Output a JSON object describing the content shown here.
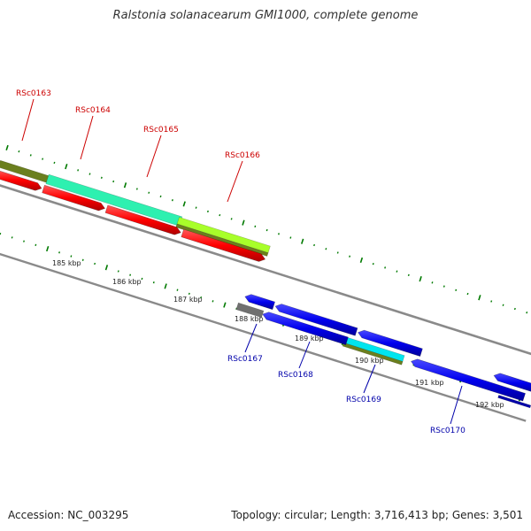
{
  "title": "Ralstonia solanacearum GMI1000, complete genome",
  "footer": {
    "accession_label": "Accession:",
    "accession": "NC_003295",
    "topology_label": "Topology:",
    "topology": "circular",
    "length_label": "Length:",
    "length": "3,716,413 bp",
    "genes_label": "Genes:",
    "genes": "3,501"
  },
  "scale_ticks": [
    "185 kbp",
    "186 kbp",
    "187 kbp",
    "188 kbp",
    "189 kbp",
    "190 kbp",
    "191 kbp",
    "192 kbp"
  ],
  "gene_labels_forward": [
    "RSc0163",
    "RSc0164",
    "RSc0165",
    "RSc0166"
  ],
  "gene_labels_reverse": [
    "RSc0167",
    "RSc0168",
    "RSc0169",
    "RSc0170"
  ],
  "colors": {
    "forward_cds": "#ff0000",
    "reverse_cds": "#0000ee",
    "label_forward": "#cc0000",
    "label_reverse": "#0000aa",
    "tick": "#007a00",
    "backbone": "#8a8a8a",
    "feature_olive": "#6b7f1e",
    "feature_aqua": "#2ef0b0",
    "feature_lime": "#a8ff2a",
    "feature_cyan": "#00e5ee",
    "feature_gray": "#707070"
  }
}
